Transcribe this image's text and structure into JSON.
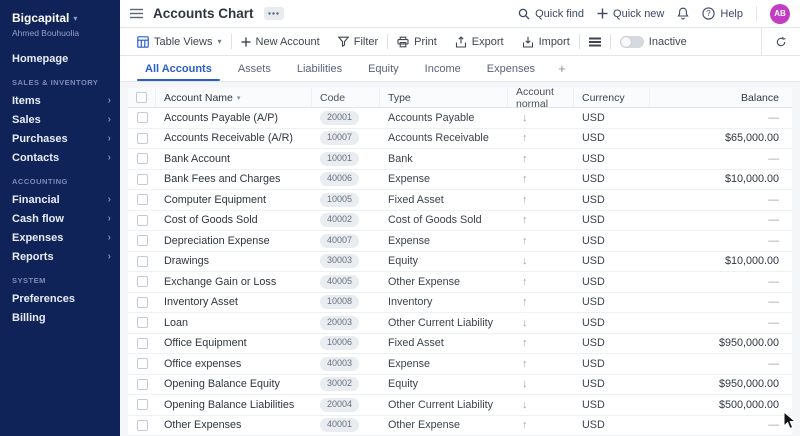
{
  "colors": {
    "accent": "#2a5fc9",
    "sidebar_bg": "#0f2359",
    "avatar_bg": "#c13dc1",
    "toggle_off": "#d4d9df"
  },
  "sidebar": {
    "org_name": "Bigcapital",
    "user_name": "Ahmed Bouhuolia",
    "groups": [
      {
        "section": "",
        "items": [
          {
            "label": "Homepage",
            "chevron": false
          }
        ]
      },
      {
        "section": "SALES & INVENTORY",
        "items": [
          {
            "label": "Items",
            "chevron": true
          },
          {
            "label": "Sales",
            "chevron": true
          },
          {
            "label": "Purchases",
            "chevron": true
          },
          {
            "label": "Contacts",
            "chevron": true
          }
        ]
      },
      {
        "section": "ACCOUNTING",
        "items": [
          {
            "label": "Financial",
            "chevron": true
          },
          {
            "label": "Cash flow",
            "chevron": true
          },
          {
            "label": "Expenses",
            "chevron": true
          },
          {
            "label": "Reports",
            "chevron": true
          }
        ]
      },
      {
        "section": "SYSTEM",
        "items": [
          {
            "label": "Preferences",
            "chevron": false
          },
          {
            "label": "Billing",
            "chevron": false
          }
        ]
      }
    ]
  },
  "header": {
    "title": "Accounts Chart",
    "quick_find": "Quick find",
    "quick_new": "Quick new",
    "help": "Help",
    "avatar_initials": "AB"
  },
  "toolbar": {
    "table_views": "Table Views",
    "new_account": "New Account",
    "filter": "Filter",
    "print": "Print",
    "export": "Export",
    "import": "Import",
    "inactive": "Inactive"
  },
  "tabs": {
    "items": [
      "All Accounts",
      "Assets",
      "Liabilities",
      "Equity",
      "Income",
      "Expenses"
    ],
    "active_index": 0
  },
  "table": {
    "columns": [
      "Account Name",
      "Code",
      "Type",
      "Account normal",
      "Currency",
      "Balance"
    ],
    "rows": [
      {
        "name": "Accounts Payable (A/P)",
        "code": "20001",
        "type": "Accounts Payable",
        "normal": "credit",
        "currency": "USD",
        "balance": "—"
      },
      {
        "name": "Accounts Receivable (A/R)",
        "code": "10007",
        "type": "Accounts Receivable",
        "normal": "debit",
        "currency": "USD",
        "balance": "$65,000.00"
      },
      {
        "name": "Bank Account",
        "code": "10001",
        "type": "Bank",
        "normal": "debit",
        "currency": "USD",
        "balance": "—"
      },
      {
        "name": "Bank Fees and Charges",
        "code": "40006",
        "type": "Expense",
        "normal": "debit",
        "currency": "USD",
        "balance": "$10,000.00"
      },
      {
        "name": "Computer Equipment",
        "code": "10005",
        "type": "Fixed Asset",
        "normal": "debit",
        "currency": "USD",
        "balance": "—"
      },
      {
        "name": "Cost of Goods Sold",
        "code": "40002",
        "type": "Cost of Goods Sold",
        "normal": "debit",
        "currency": "USD",
        "balance": "—"
      },
      {
        "name": "Depreciation Expense",
        "code": "40007",
        "type": "Expense",
        "normal": "debit",
        "currency": "USD",
        "balance": "—"
      },
      {
        "name": "Drawings",
        "code": "30003",
        "type": "Equity",
        "normal": "credit",
        "currency": "USD",
        "balance": "$10,000.00"
      },
      {
        "name": "Exchange Gain or Loss",
        "code": "40005",
        "type": "Other Expense",
        "normal": "debit",
        "currency": "USD",
        "balance": "—"
      },
      {
        "name": "Inventory Asset",
        "code": "10008",
        "type": "Inventory",
        "normal": "debit",
        "currency": "USD",
        "balance": "—"
      },
      {
        "name": "Loan",
        "code": "20003",
        "type": "Other Current Liability",
        "normal": "credit",
        "currency": "USD",
        "balance": "—"
      },
      {
        "name": "Office Equipment",
        "code": "10006",
        "type": "Fixed Asset",
        "normal": "debit",
        "currency": "USD",
        "balance": "$950,000.00"
      },
      {
        "name": "Office expenses",
        "code": "40003",
        "type": "Expense",
        "normal": "debit",
        "currency": "USD",
        "balance": "—"
      },
      {
        "name": "Opening Balance Equity",
        "code": "30002",
        "type": "Equity",
        "normal": "credit",
        "currency": "USD",
        "balance": "$950,000.00"
      },
      {
        "name": "Opening Balance Liabilities",
        "code": "20004",
        "type": "Other Current Liability",
        "normal": "credit",
        "currency": "USD",
        "balance": "$500,000.00"
      },
      {
        "name": "Other Expenses",
        "code": "40001",
        "type": "Other Expense",
        "normal": "debit",
        "currency": "USD",
        "balance": "—"
      }
    ]
  }
}
